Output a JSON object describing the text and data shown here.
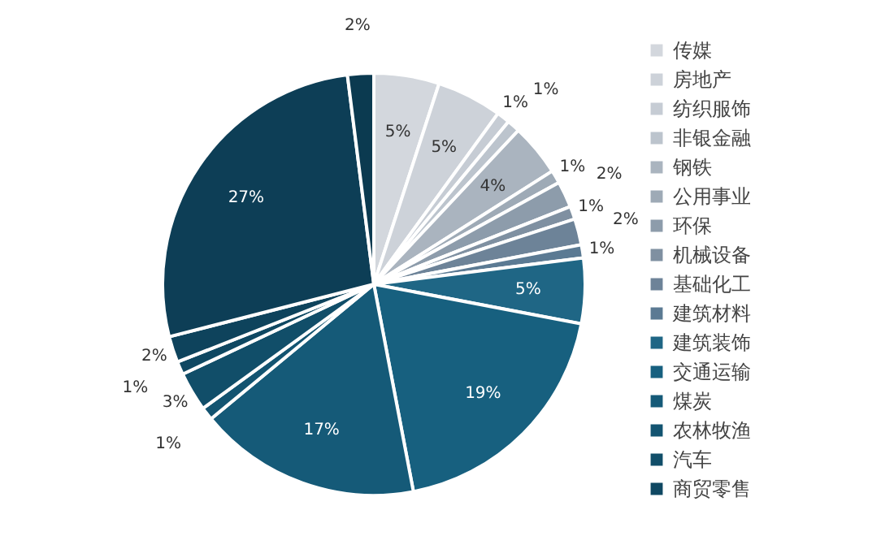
{
  "chart_data": {
    "type": "pie",
    "categories": [
      "传媒",
      "房地产",
      "纺织服饰",
      "非银金融",
      "钢铁",
      "公用事业",
      "环保",
      "机械设备",
      "基础化工",
      "建筑材料",
      "建筑装饰",
      "交通运输",
      "煤炭",
      "农林牧渔",
      "汽车",
      "商贸零售",
      null,
      null,
      null
    ],
    "values": [
      5,
      5,
      1,
      1,
      4,
      1,
      2,
      1,
      2,
      1,
      5,
      19,
      17,
      1,
      3,
      1,
      2,
      27,
      2
    ],
    "value_labels": [
      "5%",
      "5%",
      "1%",
      "1%",
      "4%",
      "1%",
      "2%",
      "1%",
      "2%",
      "1%",
      "5%",
      "19%",
      "17%",
      "1%",
      "3%",
      "1%",
      "2%",
      "27%",
      "2%"
    ],
    "colors": [
      "#d3d7dd",
      "#cdd2d9",
      "#c6ccd4",
      "#bcc4cd",
      "#aab4bf",
      "#9eaab6",
      "#8d9cab",
      "#7f90a1",
      "#6d8398",
      "#5b7a93",
      "#1f6685",
      "#17607f",
      "#155a78",
      "#135471",
      "#114e69",
      "#0f4862",
      "#0e435c",
      "#0d3e56",
      "#0b3a50"
    ],
    "legend": "right"
  }
}
